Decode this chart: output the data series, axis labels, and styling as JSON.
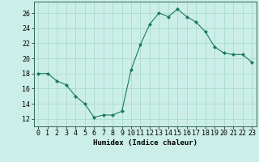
{
  "x": [
    0,
    1,
    2,
    3,
    4,
    5,
    6,
    7,
    8,
    9,
    10,
    11,
    12,
    13,
    14,
    15,
    16,
    17,
    18,
    19,
    20,
    21,
    22,
    23
  ],
  "y": [
    18.0,
    18.0,
    17.0,
    16.5,
    15.0,
    14.0,
    12.2,
    12.5,
    12.5,
    13.0,
    18.5,
    21.8,
    24.5,
    26.0,
    25.5,
    26.5,
    25.5,
    24.8,
    23.5,
    21.5,
    20.7,
    20.5,
    20.5,
    19.5
  ],
  "line_color": "#1a7a5e",
  "marker": "D",
  "marker_size": 2.0,
  "bg_color": "#cceee8",
  "grid_color": "#aaddcc",
  "xlabel": "Humidex (Indice chaleur)",
  "xlim": [
    -0.5,
    23.5
  ],
  "ylim": [
    11,
    27.5
  ],
  "yticks": [
    12,
    14,
    16,
    18,
    20,
    22,
    24,
    26
  ],
  "xticks": [
    0,
    1,
    2,
    3,
    4,
    5,
    6,
    7,
    8,
    9,
    10,
    11,
    12,
    13,
    14,
    15,
    16,
    17,
    18,
    19,
    20,
    21,
    22,
    23
  ],
  "xlabel_fontsize": 6.5,
  "tick_fontsize": 6.0,
  "lw": 0.8
}
